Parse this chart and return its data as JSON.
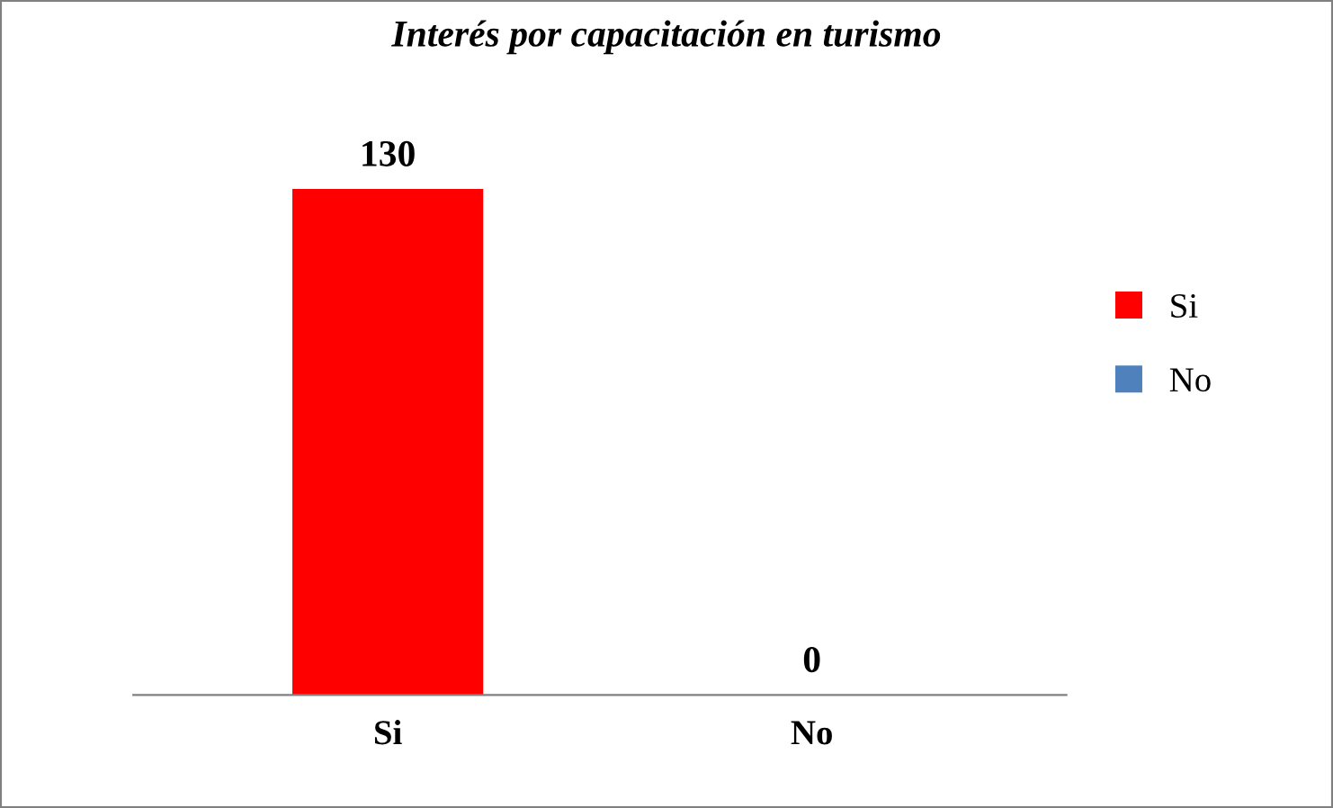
{
  "chart_data": {
    "type": "bar",
    "title": "Interés por capacitación en turismo",
    "categories": [
      "Si",
      "No"
    ],
    "series": [
      {
        "name": "Si",
        "color": "#ff0000",
        "values": [
          130,
          null
        ]
      },
      {
        "name": "No",
        "color": "#4f81bd",
        "values": [
          null,
          0
        ]
      }
    ],
    "data_labels": true,
    "legend": "right",
    "tick_labels": "x",
    "grid": false
  }
}
